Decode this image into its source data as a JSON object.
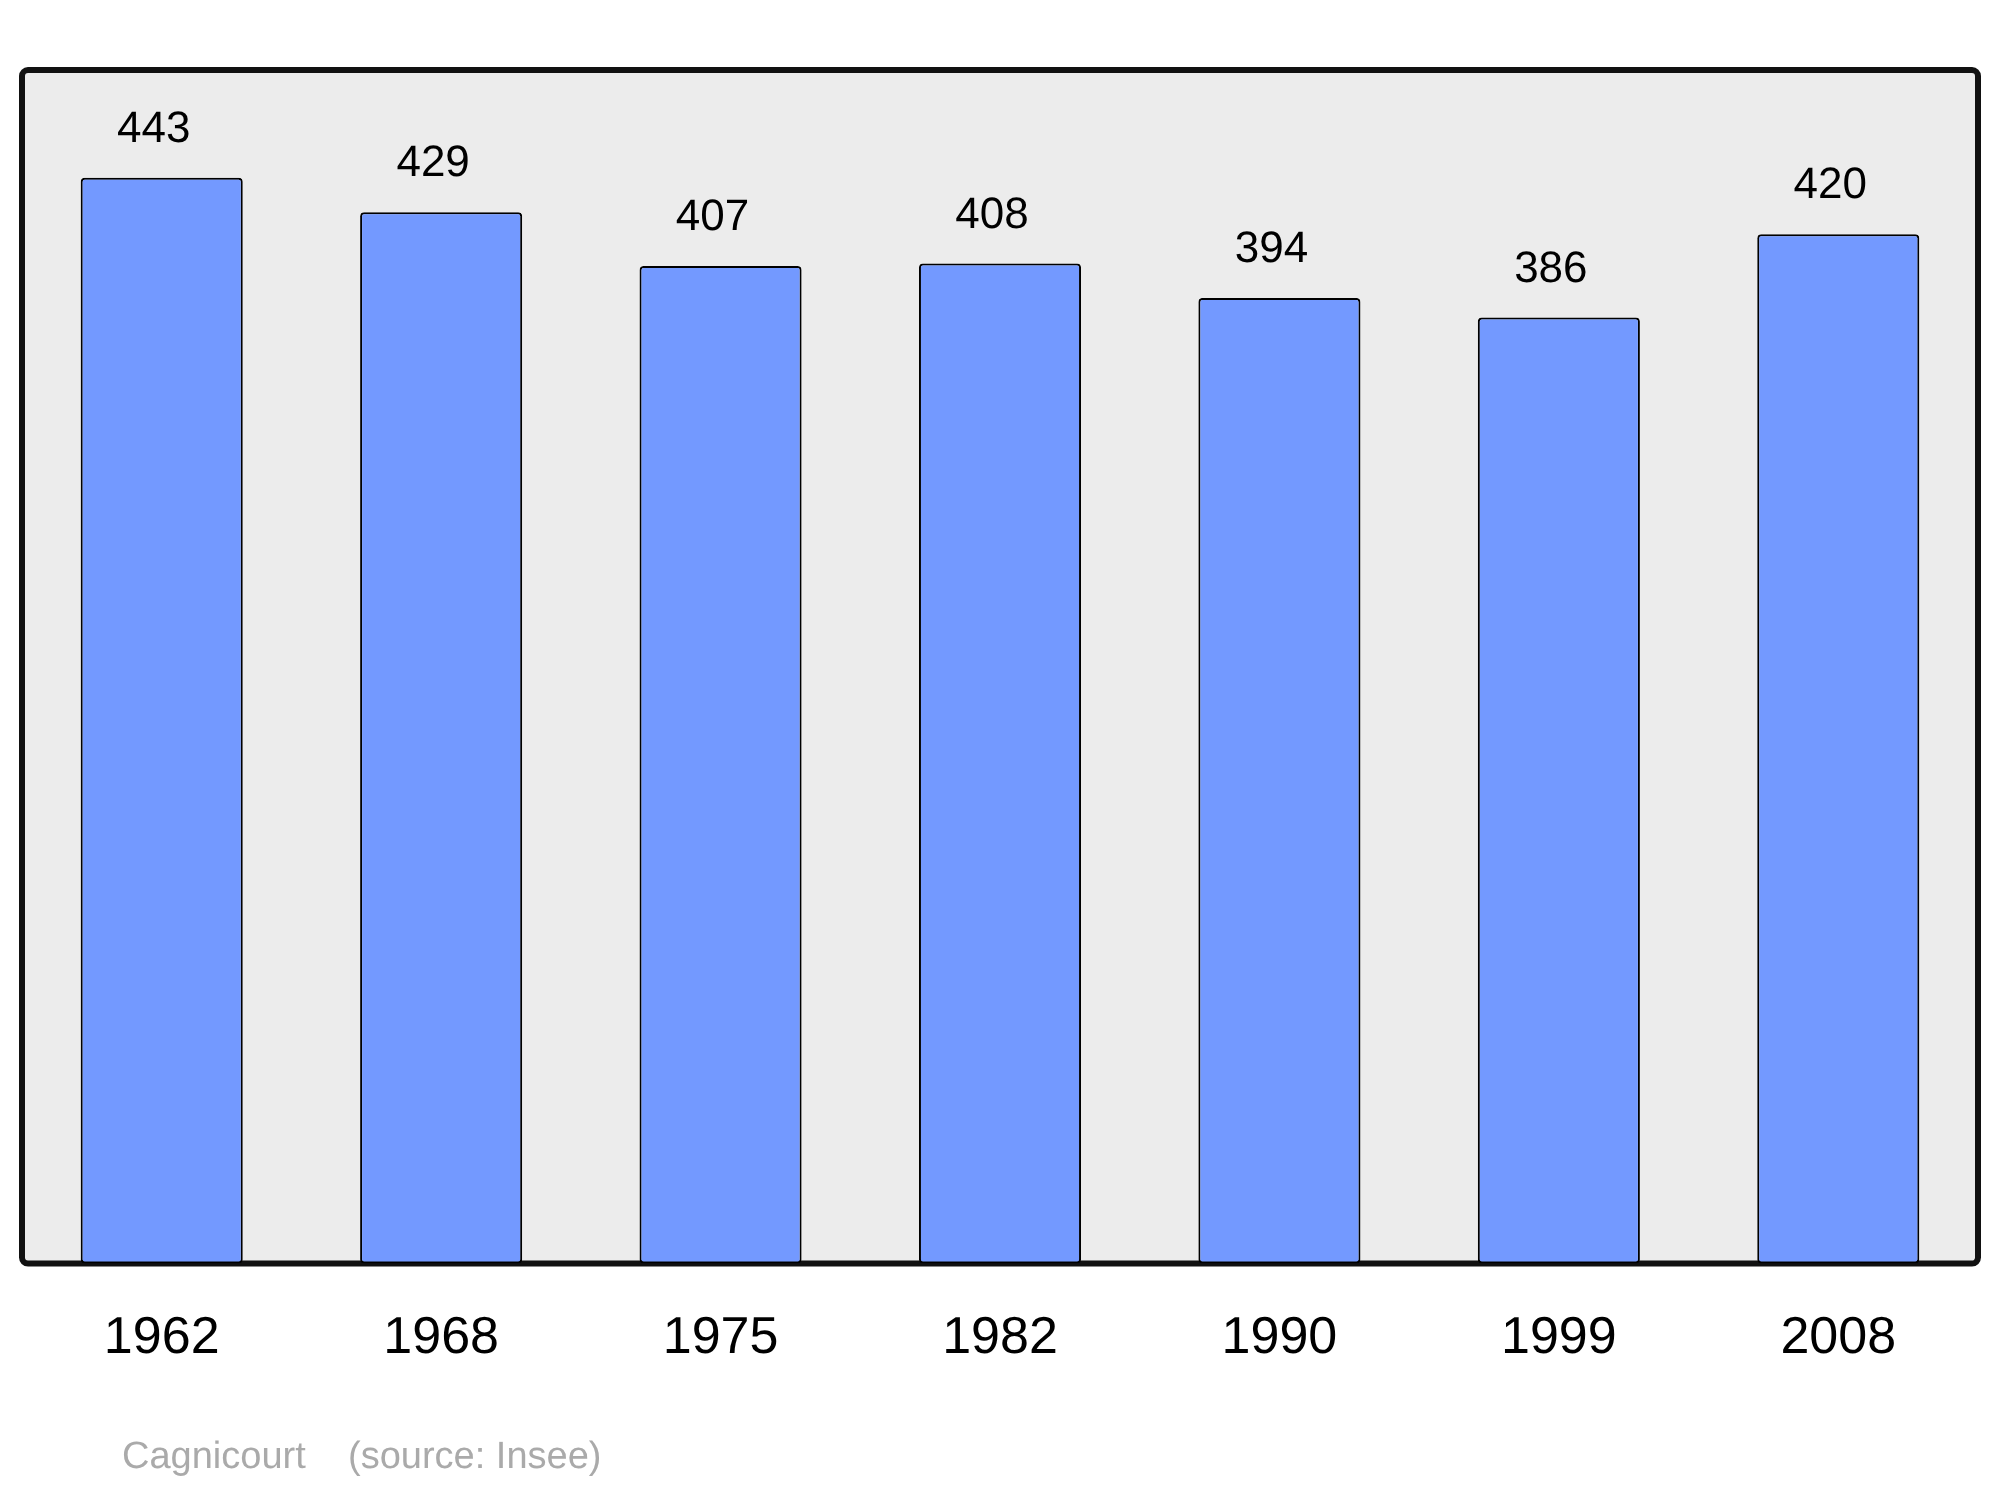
{
  "chart_data": {
    "type": "bar",
    "categories": [
      "1962",
      "1968",
      "1975",
      "1982",
      "1990",
      "1999",
      "2008"
    ],
    "values": [
      443,
      429,
      407,
      408,
      394,
      386,
      420
    ],
    "color": "#7399ff",
    "ylim": [
      0,
      487
    ],
    "data_labels": true,
    "grid": false,
    "legend": false,
    "tick_labels": "x",
    "annotations": [
      "Cagnicourt    (source: Insee)"
    ]
  }
}
